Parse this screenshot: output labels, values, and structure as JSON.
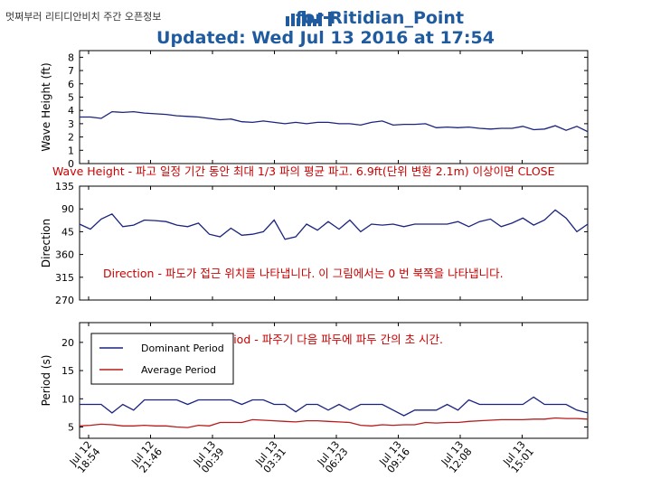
{
  "header": {
    "top_left": "멋쩌부러 리티디안비치 주간 오픈정보",
    "title_line1": "for Ritidian_Point",
    "title_line2": "Updated:  Wed Jul 13 2016 at 17:54"
  },
  "x_ticks": [
    {
      "line1": "Jul 12",
      "line2": "18:54"
    },
    {
      "line1": "Jul 12",
      "line2": "21:46"
    },
    {
      "line1": "Jul 13",
      "line2": "00:39"
    },
    {
      "line1": "Jul 13",
      "line2": "03:31"
    },
    {
      "line1": "Jul 13",
      "line2": "06:23"
    },
    {
      "line1": "Jul 13",
      "line2": "09:16"
    },
    {
      "line1": "Jul 13",
      "line2": "12:08"
    },
    {
      "line1": "Jul 13",
      "line2": "15:01"
    }
  ],
  "annotations": {
    "wave_height": "Wave Height - 파고 일정 기간 동안 최대 1/3 파의 평균 파고. 6.9ft(단위 변환 2.1m) 이상이면 CLOSE",
    "direction": "Direction - 파도가 접근 위치를 나타냅니다. 이 그림에서는 0 번 북쪽을 나타냅니다.",
    "period": "Wave Period - 파주기 다음 파두에 파두 간의 초 시간."
  },
  "colors": {
    "line": "#1a237e",
    "average": "#b71c1c",
    "annotation": "#cc0000",
    "title": "#1f5b9e"
  },
  "chart_data": [
    {
      "type": "line",
      "ylabel": "Wave Height (ft)",
      "ylim": [
        0,
        8.5
      ],
      "yticks": [
        "0",
        "1",
        "2",
        "3",
        "4",
        "5",
        "6",
        "7",
        "8"
      ],
      "x_count": 48,
      "series": [
        {
          "values": [
            3.5,
            3.5,
            3.4,
            3.9,
            3.85,
            3.9,
            3.8,
            3.75,
            3.7,
            3.6,
            3.55,
            3.5,
            3.4,
            3.3,
            3.35,
            3.15,
            3.1,
            3.2,
            3.1,
            3.0,
            3.1,
            3.0,
            3.1,
            3.1,
            3.0,
            3.0,
            2.9,
            3.1,
            3.2,
            2.9,
            2.95,
            2.95,
            3.0,
            2.7,
            2.75,
            2.7,
            2.75,
            2.65,
            2.6,
            2.65,
            2.65,
            2.8,
            2.55,
            2.6,
            2.85,
            2.5,
            2.8,
            2.4
          ]
        }
      ]
    },
    {
      "type": "line",
      "ylabel": "Direction",
      "yticks": [
        "270",
        "315",
        "360",
        "45",
        "90",
        "135"
      ],
      "ylim": [
        270,
        495
      ],
      "x_count": 48,
      "series": [
        {
          "values": [
            420,
            410,
            430,
            440,
            415,
            418,
            428,
            427,
            425,
            418,
            415,
            422,
            400,
            395,
            412,
            398,
            400,
            405,
            428,
            390,
            395,
            420,
            408,
            425,
            410,
            428,
            405,
            420,
            418,
            420,
            415,
            420,
            420,
            420,
            420,
            425,
            415,
            425,
            430,
            415,
            422,
            432,
            418,
            428,
            448,
            432,
            405,
            420
          ]
        }
      ]
    },
    {
      "type": "line",
      "ylabel": "Period (s)",
      "ylim": [
        3,
        23.5
      ],
      "yticks": [
        "5",
        "10",
        "15",
        "20"
      ],
      "x_count": 48,
      "series": [
        {
          "name": "Dominant Period",
          "values": [
            9,
            9,
            9,
            7.5,
            9,
            8,
            9.8,
            9.8,
            9.8,
            9.8,
            9,
            9.8,
            9.8,
            9.8,
            9.8,
            9,
            9.8,
            9.8,
            9,
            9,
            7.7,
            9,
            9,
            8,
            9,
            8,
            9,
            9,
            9,
            8,
            7,
            8,
            8,
            8,
            9,
            8,
            9.8,
            9,
            9,
            9,
            9,
            9,
            10.3,
            9,
            9,
            9,
            8,
            7.5
          ]
        },
        {
          "name": "Average Period",
          "values": [
            5.2,
            5.3,
            5.5,
            5.4,
            5.2,
            5.2,
            5.3,
            5.2,
            5.2,
            5,
            4.9,
            5.3,
            5.2,
            5.8,
            5.8,
            5.8,
            6.3,
            6.2,
            6.1,
            6,
            5.9,
            6.1,
            6.1,
            6,
            5.9,
            5.8,
            5.3,
            5.2,
            5.4,
            5.3,
            5.4,
            5.4,
            5.8,
            5.7,
            5.8,
            5.8,
            6,
            6.1,
            6.2,
            6.3,
            6.3,
            6.3,
            6.4,
            6.4,
            6.6,
            6.5,
            6.5,
            6.4
          ]
        }
      ]
    }
  ]
}
